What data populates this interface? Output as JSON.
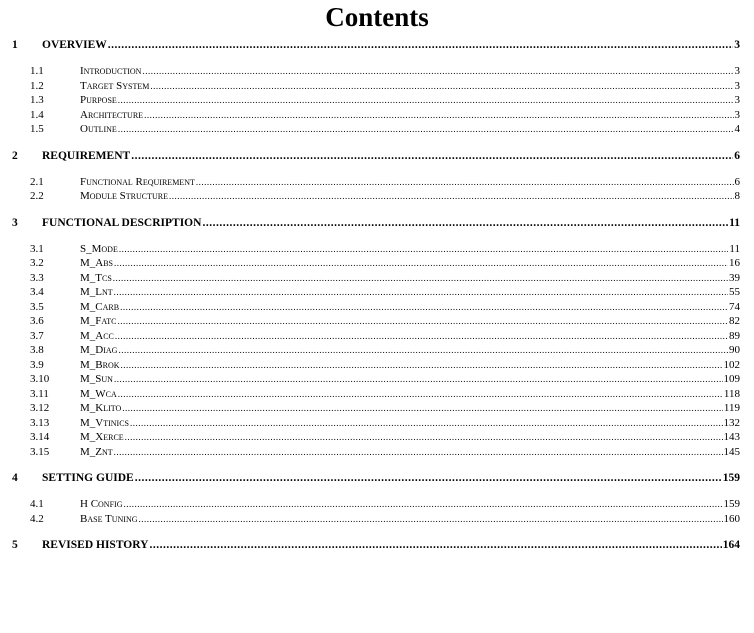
{
  "title": "Contents",
  "chapters": [
    {
      "number": "1",
      "title": "OVERVIEW",
      "page": "3",
      "sections": [
        {
          "number": "1.1",
          "title": "Introduction",
          "page": "3"
        },
        {
          "number": "1.2",
          "title": "Target System",
          "page": "3"
        },
        {
          "number": "1.3",
          "title": "Purpose",
          "page": "3"
        },
        {
          "number": "1.4",
          "title": "Architecture",
          "page": "3"
        },
        {
          "number": "1.5",
          "title": "Outline",
          "page": "4"
        }
      ]
    },
    {
      "number": "2",
      "title": "REQUIREMENT",
      "page": "6",
      "sections": [
        {
          "number": "2.1",
          "title": "Functional Requirement",
          "page": "6"
        },
        {
          "number": "2.2",
          "title": "Module Structure",
          "page": "8"
        }
      ]
    },
    {
      "number": "3",
      "title": "FUNCTIONAL DESCRIPTION",
      "page": "11",
      "sections": [
        {
          "number": "3.1",
          "title": "S_Mode",
          "page": "11"
        },
        {
          "number": "3.2",
          "title": "M_Abs",
          "page": "16"
        },
        {
          "number": "3.3",
          "title": "M_Tcs",
          "page": "39"
        },
        {
          "number": "3.4",
          "title": "M_Lnt",
          "page": "55"
        },
        {
          "number": "3.5",
          "title": "M_Carb",
          "page": "74"
        },
        {
          "number": "3.6",
          "title": "M_Fatc",
          "page": "82"
        },
        {
          "number": "3.7",
          "title": "M_Acc",
          "page": "89"
        },
        {
          "number": "3.8",
          "title": "M_Diag",
          "page": "90"
        },
        {
          "number": "3.9",
          "title": "M_Brok",
          "page": "102"
        },
        {
          "number": "3.10",
          "title": "M_Sun",
          "page": "109"
        },
        {
          "number": "3.11",
          "title": "M_Wca",
          "page": "118"
        },
        {
          "number": "3.12",
          "title": "M_Klito",
          "page": "119"
        },
        {
          "number": "3.13",
          "title": "M_Vtinics",
          "page": "132"
        },
        {
          "number": "3.14",
          "title": "M_Xerce",
          "page": "143"
        },
        {
          "number": "3.15",
          "title": "M_Znt",
          "page": "145"
        }
      ]
    },
    {
      "number": "4",
      "title": "SETTING GUIDE",
      "page": "159",
      "sections": [
        {
          "number": "4.1",
          "title": "H Config",
          "page": "159"
        },
        {
          "number": "4.2",
          "title": "Base Tuning",
          "page": "160"
        }
      ]
    },
    {
      "number": "5",
      "title": "REVISED HISTORY",
      "page": "164",
      "sections": []
    }
  ]
}
